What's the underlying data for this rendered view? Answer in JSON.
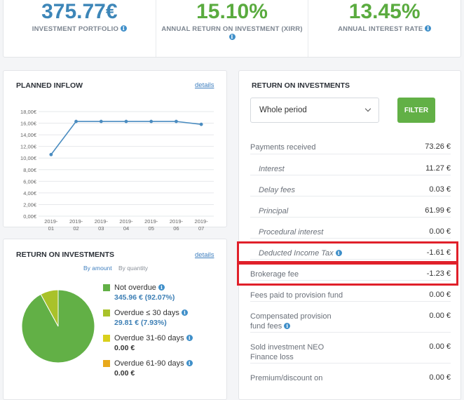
{
  "stats": [
    {
      "value": "375.77€",
      "label": "Investment portfolio",
      "color": "#3d86b8"
    },
    {
      "value": "15.10%",
      "label": "Annual return on investment (XIRR)",
      "color": "#5aab3f"
    },
    {
      "value": "13.45%",
      "label": "Annual interest rate",
      "color": "#5aab3f"
    }
  ],
  "planned_inflow": {
    "title": "Planned inflow",
    "details_label": "details",
    "chart_data": {
      "type": "line",
      "categories": [
        "2019-\n01",
        "2019-\n02",
        "2019-\n03",
        "2019-\n04",
        "2019-\n05",
        "2019-\n06",
        "2019-\n07"
      ],
      "series": [
        {
          "values": [
            10.6,
            16.3,
            16.3,
            16.3,
            16.3,
            16.3,
            15.8
          ]
        }
      ],
      "y_ticks": [
        "0,00€",
        "2,00€",
        "4,00€",
        "6,00€",
        "8,00€",
        "10,00€",
        "12,00€",
        "14,00€",
        "16,00€",
        "18,00€"
      ],
      "ylim": [
        0,
        18
      ],
      "grid": true,
      "line_color": "#4a8cc0"
    }
  },
  "roi_breakdown": {
    "title": "Return on investments",
    "details_label": "details",
    "toggle": {
      "by_amount": "By amount",
      "by_quantity": "By quantity"
    },
    "chart_data": {
      "type": "pie",
      "slices": [
        {
          "label": "Not overdue",
          "value": 345.96,
          "percent": 92.07,
          "color": "#62b046"
        },
        {
          "label": "Overdue ≤ 30 days",
          "value": 29.81,
          "percent": 7.93,
          "color": "#a9c22a"
        },
        {
          "label": "Overdue 31-60 days",
          "value": 0,
          "percent": 0,
          "color": "#d9d01c"
        },
        {
          "label": "Overdue 61-90 days",
          "value": 0,
          "percent": 0,
          "color": "#e8a91c"
        }
      ]
    },
    "legend": [
      {
        "label": "Not overdue",
        "amount": "345.96 € (92.07%)",
        "color": "#62b046",
        "amount_color": "#3d7fb5"
      },
      {
        "label": "Overdue ≤ 30 days",
        "amount": "29.81 € (7.93%)",
        "color": "#a9c22a",
        "amount_color": "#3d7fb5"
      },
      {
        "label": "Overdue 31-60 days",
        "amount": "0.00 €",
        "color": "#d9d01c",
        "amount_color": "#333333"
      },
      {
        "label": "Overdue 61-90 days",
        "amount": "0.00 €",
        "color": "#e8a91c",
        "amount_color": "#333333"
      }
    ]
  },
  "returns": {
    "title": "Return on investments",
    "period_select": "Whole period",
    "filter_label": "FILTER",
    "rows": [
      {
        "label": "Payments received",
        "value": "73.26 €",
        "sub": false
      },
      {
        "label": "Interest",
        "value": "11.27 €",
        "sub": true
      },
      {
        "label": "Delay fees",
        "value": "0.03 €",
        "sub": true
      },
      {
        "label": "Principal",
        "value": "61.99 €",
        "sub": true
      },
      {
        "label": "Procedural interest",
        "value": "0.00 €",
        "sub": true
      },
      {
        "label": "Deducted Income Tax",
        "value": "-1.61 €",
        "sub": true,
        "info": true
      },
      {
        "label": "Brokerage fee",
        "value": "-1.23 €",
        "sub": false
      },
      {
        "label": "Fees paid to provision fund",
        "value": "0.00 €",
        "sub": false
      },
      {
        "label": "Compensated provision\nfund fees",
        "value": "0.00 €",
        "sub": false,
        "info": true
      },
      {
        "label": "Sold investment NEO\nFinance loss",
        "value": "0.00 €",
        "sub": false
      },
      {
        "label": "Premium/discount on",
        "value": "0.00 €",
        "sub": false
      }
    ]
  }
}
